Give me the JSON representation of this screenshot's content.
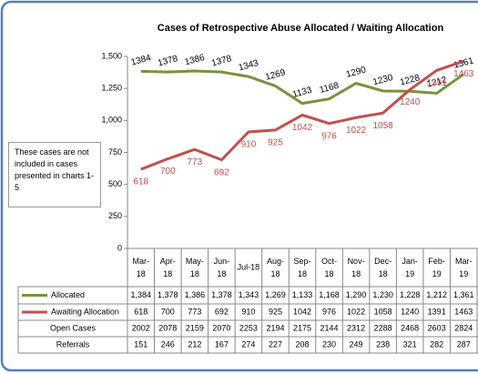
{
  "chart_data": {
    "type": "line",
    "title": "Cases of Retrospective Abuse Allocated / Waiting Allocation",
    "note": "These cases are not included in cases presented in charts 1-5",
    "categories": [
      "Mar-18",
      "Apr-18",
      "May-18",
      "Jun-18",
      "Jul-18",
      "Aug-18",
      "Sep-18",
      "Oct-18",
      "Nov-18",
      "Dec-18",
      "Jan-19",
      "Feb-19",
      "Mar-19"
    ],
    "series": [
      {
        "name": "Allocated",
        "color": "#77933c",
        "values": [
          1384,
          1378,
          1386,
          1378,
          1343,
          1269,
          1133,
          1168,
          1290,
          1230,
          1228,
          1212,
          1361
        ]
      },
      {
        "name": "Awaiting Allocation",
        "color": "#c0504d",
        "values": [
          618,
          700,
          773,
          692,
          910,
          925,
          1042,
          976,
          1022,
          1058,
          1240,
          1391,
          1463
        ]
      },
      {
        "name": "Open Cases",
        "values": [
          2002,
          2078,
          2159,
          2070,
          2253,
          2194,
          2175,
          2144,
          2312,
          2288,
          2468,
          2603,
          2824
        ]
      },
      {
        "name": "Referrals",
        "values": [
          151,
          246,
          212,
          167,
          274,
          227,
          208,
          230,
          249,
          238,
          321,
          282,
          287
        ]
      }
    ],
    "ylim": [
      0,
      1500
    ],
    "yticks": [
      0,
      250,
      500,
      750,
      {
        "value": 1000,
        "label": "1,000"
      },
      {
        "value": 1250,
        "label": "1,250"
      },
      {
        "value": 1500,
        "label": "1,500"
      }
    ],
    "table_labels": [
      "1,384",
      "1,378",
      "1,386",
      "1,378",
      "1,343",
      "1,269",
      "1,133",
      "1,168",
      "1,290",
      "1,230",
      "1,228",
      "1,212",
      "1,361"
    ]
  }
}
